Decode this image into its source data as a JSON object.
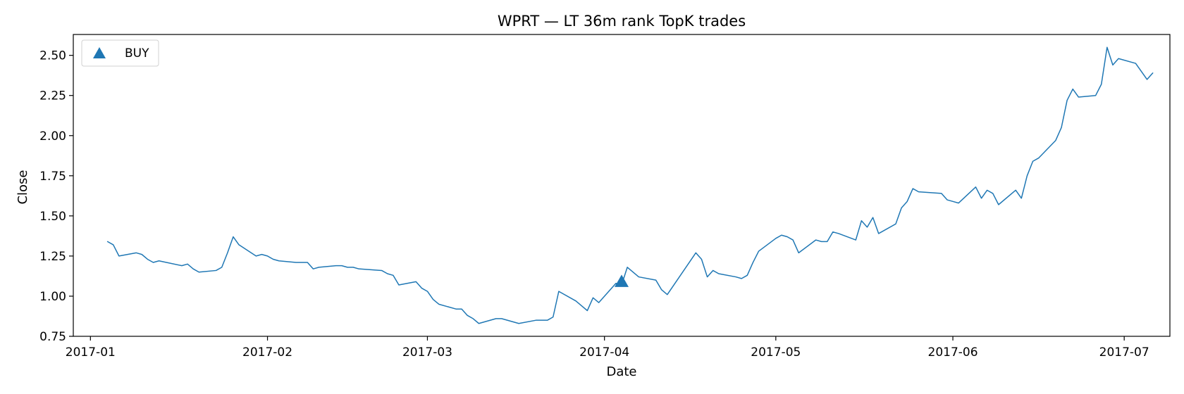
{
  "chart_data": {
    "type": "line",
    "title": "WPRT — LT 36m rank TopK trades",
    "xlabel": "Date",
    "ylabel": "Close",
    "x_range": [
      "2016-12-29",
      "2017-07-09"
    ],
    "ylim": [
      0.75,
      2.63
    ],
    "grid": false,
    "legend_position": "top-left",
    "x_ticks": [
      "2017-01-01",
      "2017-02-01",
      "2017-03-01",
      "2017-04-01",
      "2017-05-01",
      "2017-06-01",
      "2017-07-01"
    ],
    "x_tick_labels": [
      "2017-01",
      "2017-02",
      "2017-03",
      "2017-04",
      "2017-05",
      "2017-06",
      "2017-07"
    ],
    "y_ticks": [
      0.75,
      1.0,
      1.25,
      1.5,
      1.75,
      2.0,
      2.25,
      2.5
    ],
    "y_tick_labels": [
      "0.75",
      "1.00",
      "1.25",
      "1.50",
      "1.75",
      "2.00",
      "2.25",
      "2.50"
    ],
    "series": [
      {
        "color": "#1f77b4",
        "points": [
          [
            "2017-01-04",
            1.34
          ],
          [
            "2017-01-05",
            1.32
          ],
          [
            "2017-01-06",
            1.25
          ],
          [
            "2017-01-09",
            1.27
          ],
          [
            "2017-01-10",
            1.26
          ],
          [
            "2017-01-11",
            1.23
          ],
          [
            "2017-01-12",
            1.21
          ],
          [
            "2017-01-13",
            1.22
          ],
          [
            "2017-01-17",
            1.19
          ],
          [
            "2017-01-18",
            1.2
          ],
          [
            "2017-01-19",
            1.17
          ],
          [
            "2017-01-20",
            1.15
          ],
          [
            "2017-01-23",
            1.16
          ],
          [
            "2017-01-24",
            1.18
          ],
          [
            "2017-01-25",
            1.27
          ],
          [
            "2017-01-26",
            1.37
          ],
          [
            "2017-01-27",
            1.32
          ],
          [
            "2017-01-30",
            1.25
          ],
          [
            "2017-01-31",
            1.26
          ],
          [
            "2017-02-01",
            1.25
          ],
          [
            "2017-02-02",
            1.23
          ],
          [
            "2017-02-03",
            1.22
          ],
          [
            "2017-02-06",
            1.21
          ],
          [
            "2017-02-07",
            1.21
          ],
          [
            "2017-02-08",
            1.21
          ],
          [
            "2017-02-09",
            1.17
          ],
          [
            "2017-02-10",
            1.18
          ],
          [
            "2017-02-13",
            1.19
          ],
          [
            "2017-02-14",
            1.19
          ],
          [
            "2017-02-15",
            1.18
          ],
          [
            "2017-02-16",
            1.18
          ],
          [
            "2017-02-17",
            1.17
          ],
          [
            "2017-02-21",
            1.16
          ],
          [
            "2017-02-22",
            1.14
          ],
          [
            "2017-02-23",
            1.13
          ],
          [
            "2017-02-24",
            1.07
          ],
          [
            "2017-02-27",
            1.09
          ],
          [
            "2017-02-28",
            1.05
          ],
          [
            "2017-03-01",
            1.03
          ],
          [
            "2017-03-02",
            0.98
          ],
          [
            "2017-03-03",
            0.95
          ],
          [
            "2017-03-06",
            0.92
          ],
          [
            "2017-03-07",
            0.92
          ],
          [
            "2017-03-08",
            0.88
          ],
          [
            "2017-03-09",
            0.86
          ],
          [
            "2017-03-10",
            0.83
          ],
          [
            "2017-03-13",
            0.86
          ],
          [
            "2017-03-14",
            0.86
          ],
          [
            "2017-03-17",
            0.83
          ],
          [
            "2017-03-20",
            0.85
          ],
          [
            "2017-03-21",
            0.85
          ],
          [
            "2017-03-22",
            0.85
          ],
          [
            "2017-03-23",
            0.87
          ],
          [
            "2017-03-24",
            1.03
          ],
          [
            "2017-03-27",
            0.97
          ],
          [
            "2017-03-28",
            0.94
          ],
          [
            "2017-03-29",
            0.91
          ],
          [
            "2017-03-30",
            0.99
          ],
          [
            "2017-03-31",
            0.96
          ],
          [
            "2017-04-03",
            1.08
          ],
          [
            "2017-04-04",
            1.07
          ],
          [
            "2017-04-05",
            1.18
          ],
          [
            "2017-04-07",
            1.12
          ],
          [
            "2017-04-10",
            1.1
          ],
          [
            "2017-04-11",
            1.04
          ],
          [
            "2017-04-12",
            1.01
          ],
          [
            "2017-04-17",
            1.27
          ],
          [
            "2017-04-18",
            1.23
          ],
          [
            "2017-04-19",
            1.12
          ],
          [
            "2017-04-20",
            1.16
          ],
          [
            "2017-04-21",
            1.14
          ],
          [
            "2017-04-24",
            1.12
          ],
          [
            "2017-04-25",
            1.11
          ],
          [
            "2017-04-26",
            1.13
          ],
          [
            "2017-04-27",
            1.21
          ],
          [
            "2017-04-28",
            1.28
          ],
          [
            "2017-05-01",
            1.36
          ],
          [
            "2017-05-02",
            1.38
          ],
          [
            "2017-05-03",
            1.37
          ],
          [
            "2017-05-04",
            1.35
          ],
          [
            "2017-05-05",
            1.27
          ],
          [
            "2017-05-08",
            1.35
          ],
          [
            "2017-05-09",
            1.34
          ],
          [
            "2017-05-10",
            1.34
          ],
          [
            "2017-05-11",
            1.4
          ],
          [
            "2017-05-12",
            1.39
          ],
          [
            "2017-05-15",
            1.35
          ],
          [
            "2017-05-16",
            1.47
          ],
          [
            "2017-05-17",
            1.43
          ],
          [
            "2017-05-18",
            1.49
          ],
          [
            "2017-05-19",
            1.39
          ],
          [
            "2017-05-22",
            1.45
          ],
          [
            "2017-05-23",
            1.55
          ],
          [
            "2017-05-24",
            1.59
          ],
          [
            "2017-05-25",
            1.67
          ],
          [
            "2017-05-26",
            1.65
          ],
          [
            "2017-05-30",
            1.64
          ],
          [
            "2017-05-31",
            1.6
          ],
          [
            "2017-06-01",
            1.59
          ],
          [
            "2017-06-02",
            1.58
          ],
          [
            "2017-06-05",
            1.68
          ],
          [
            "2017-06-06",
            1.61
          ],
          [
            "2017-06-07",
            1.66
          ],
          [
            "2017-06-08",
            1.64
          ],
          [
            "2017-06-09",
            1.57
          ],
          [
            "2017-06-12",
            1.66
          ],
          [
            "2017-06-13",
            1.61
          ],
          [
            "2017-06-14",
            1.75
          ],
          [
            "2017-06-15",
            1.84
          ],
          [
            "2017-06-16",
            1.86
          ],
          [
            "2017-06-19",
            1.97
          ],
          [
            "2017-06-20",
            2.05
          ],
          [
            "2017-06-21",
            2.22
          ],
          [
            "2017-06-22",
            2.29
          ],
          [
            "2017-06-23",
            2.24
          ],
          [
            "2017-06-26",
            2.25
          ],
          [
            "2017-06-27",
            2.32
          ],
          [
            "2017-06-28",
            2.55
          ],
          [
            "2017-06-29",
            2.44
          ],
          [
            "2017-06-30",
            2.48
          ],
          [
            "2017-07-03",
            2.45
          ],
          [
            "2017-07-05",
            2.35
          ],
          [
            "2017-07-06",
            2.39
          ]
        ]
      }
    ],
    "markers": [
      {
        "label": "BUY",
        "shape": "triangle-up",
        "color": "#1f77b4",
        "points": [
          [
            "2017-04-04",
            1.09
          ]
        ]
      }
    ]
  }
}
